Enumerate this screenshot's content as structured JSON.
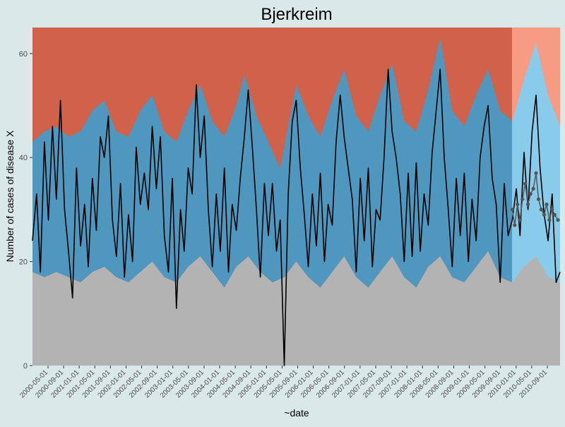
{
  "chart_data": {
    "type": "area",
    "title": "Bjerkreim",
    "xlabel": "~date",
    "ylabel": "Number of cases of disease X",
    "ylim": [
      0,
      65
    ],
    "xlim": [
      "2000-01-01",
      "2010-12-31"
    ],
    "y_ticks": [
      0,
      20,
      40,
      60
    ],
    "x_ticks": [
      "2000-05-01",
      "2000-09-01",
      "2001-01-01",
      "2001-05-01",
      "2001-09-01",
      "2002-01-01",
      "2002-05-01",
      "2002-09-01",
      "2003-01-01",
      "2003-05-01",
      "2003-09-01",
      "2004-01-01",
      "2004-05-01",
      "2004-09-01",
      "2005-01-01",
      "2005-05-01",
      "2005-09-01",
      "2006-01-01",
      "2006-05-01",
      "2006-09-01",
      "2007-01-01",
      "2007-05-01",
      "2007-09-01",
      "2007-01-01",
      "2008-01-01",
      "2008-05-01",
      "2008-09-01",
      "2009-01-01",
      "2009-05-01",
      "2009-09-01",
      "2010-01-01",
      "2010-05-01",
      "2010-09-01"
    ],
    "historical_end": "2009-12-31",
    "band_upper": [
      [
        "2000-01-01",
        43
      ],
      [
        "2000-04-01",
        45
      ],
      [
        "2000-07-01",
        46
      ],
      [
        "2000-10-01",
        44
      ],
      [
        "2001-01-01",
        45
      ],
      [
        "2001-04-01",
        49
      ],
      [
        "2001-07-01",
        51
      ],
      [
        "2001-10-01",
        45
      ],
      [
        "2002-01-01",
        44
      ],
      [
        "2002-04-01",
        49
      ],
      [
        "2002-07-01",
        52
      ],
      [
        "2002-10-01",
        45
      ],
      [
        "2003-01-01",
        43
      ],
      [
        "2003-04-01",
        49
      ],
      [
        "2003-07-01",
        54
      ],
      [
        "2003-10-01",
        47
      ],
      [
        "2004-01-01",
        44
      ],
      [
        "2004-04-01",
        50
      ],
      [
        "2004-06-01",
        56
      ],
      [
        "2004-09-01",
        48
      ],
      [
        "2004-12-01",
        43
      ],
      [
        "2005-03-01",
        38
      ],
      [
        "2005-07-01",
        54
      ],
      [
        "2005-10-01",
        48
      ],
      [
        "2006-01-01",
        44
      ],
      [
        "2006-04-01",
        51
      ],
      [
        "2006-07-01",
        57
      ],
      [
        "2006-10-01",
        48
      ],
      [
        "2007-01-01",
        45
      ],
      [
        "2007-04-01",
        52
      ],
      [
        "2007-07-01",
        58
      ],
      [
        "2007-10-01",
        47
      ],
      [
        "2008-01-01",
        45
      ],
      [
        "2008-04-01",
        53
      ],
      [
        "2008-07-01",
        63
      ],
      [
        "2008-10-01",
        49
      ],
      [
        "2009-01-01",
        46
      ],
      [
        "2009-04-01",
        52
      ],
      [
        "2009-07-01",
        57
      ],
      [
        "2009-10-01",
        49
      ],
      [
        "2010-01-01",
        47
      ],
      [
        "2010-04-01",
        55
      ],
      [
        "2010-07-01",
        62
      ],
      [
        "2010-10-01",
        52
      ],
      [
        "2010-12-31",
        46
      ]
    ],
    "band_lower": [
      [
        "2000-01-01",
        18
      ],
      [
        "2000-04-01",
        17
      ],
      [
        "2000-07-01",
        18
      ],
      [
        "2000-10-01",
        17
      ],
      [
        "2001-01-01",
        16
      ],
      [
        "2001-04-01",
        18
      ],
      [
        "2001-07-01",
        19
      ],
      [
        "2001-10-01",
        17
      ],
      [
        "2002-01-01",
        16
      ],
      [
        "2002-04-01",
        18
      ],
      [
        "2002-07-01",
        20
      ],
      [
        "2002-10-01",
        17
      ],
      [
        "2003-01-01",
        16
      ],
      [
        "2003-04-01",
        19
      ],
      [
        "2003-07-01",
        21
      ],
      [
        "2003-10-01",
        18
      ],
      [
        "2004-01-01",
        15
      ],
      [
        "2004-04-01",
        19
      ],
      [
        "2004-07-01",
        21
      ],
      [
        "2004-10-01",
        18
      ],
      [
        "2005-01-01",
        16
      ],
      [
        "2005-04-01",
        17
      ],
      [
        "2005-07-01",
        20
      ],
      [
        "2005-10-01",
        17
      ],
      [
        "2006-01-01",
        15
      ],
      [
        "2006-04-01",
        18
      ],
      [
        "2006-07-01",
        21
      ],
      [
        "2006-10-01",
        17
      ],
      [
        "2007-01-01",
        15
      ],
      [
        "2007-04-01",
        18
      ],
      [
        "2007-07-01",
        21
      ],
      [
        "2007-10-01",
        17
      ],
      [
        "2008-01-01",
        15
      ],
      [
        "2008-04-01",
        19
      ],
      [
        "2008-07-01",
        21
      ],
      [
        "2008-10-01",
        17
      ],
      [
        "2009-01-01",
        16
      ],
      [
        "2009-04-01",
        19
      ],
      [
        "2009-07-01",
        22
      ],
      [
        "2009-10-01",
        17
      ],
      [
        "2010-01-01",
        16
      ],
      [
        "2010-04-01",
        19
      ],
      [
        "2010-07-01",
        21
      ],
      [
        "2010-10-01",
        17
      ],
      [
        "2010-12-31",
        16
      ]
    ],
    "series": [
      {
        "values": [
          [
            "2000-01-01",
            24
          ],
          [
            "2000-02-01",
            33
          ],
          [
            "2000-03-01",
            18
          ],
          [
            "2000-04-01",
            43
          ],
          [
            "2000-05-01",
            28
          ],
          [
            "2000-06-01",
            46
          ],
          [
            "2000-07-01",
            32
          ],
          [
            "2000-08-01",
            51
          ],
          [
            "2000-09-01",
            30
          ],
          [
            "2000-10-01",
            22
          ],
          [
            "2000-11-01",
            13
          ],
          [
            "2000-12-01",
            38
          ],
          [
            "2001-01-01",
            23
          ],
          [
            "2001-02-01",
            31
          ],
          [
            "2001-03-01",
            19
          ],
          [
            "2001-04-01",
            36
          ],
          [
            "2001-05-01",
            26
          ],
          [
            "2001-06-01",
            44
          ],
          [
            "2001-07-01",
            40
          ],
          [
            "2001-08-01",
            48
          ],
          [
            "2001-09-01",
            28
          ],
          [
            "2001-10-01",
            21
          ],
          [
            "2001-11-01",
            35
          ],
          [
            "2001-12-01",
            17
          ],
          [
            "2002-01-01",
            29
          ],
          [
            "2002-02-01",
            20
          ],
          [
            "2002-03-01",
            42
          ],
          [
            "2002-04-01",
            31
          ],
          [
            "2002-05-01",
            37
          ],
          [
            "2002-06-01",
            30
          ],
          [
            "2002-07-01",
            46
          ],
          [
            "2002-08-01",
            34
          ],
          [
            "2002-09-01",
            44
          ],
          [
            "2002-10-01",
            25
          ],
          [
            "2002-11-01",
            18
          ],
          [
            "2002-12-01",
            36
          ],
          [
            "2003-01-01",
            11
          ],
          [
            "2003-02-01",
            30
          ],
          [
            "2003-03-01",
            22
          ],
          [
            "2003-04-01",
            38
          ],
          [
            "2003-05-01",
            33
          ],
          [
            "2003-06-01",
            54
          ],
          [
            "2003-07-01",
            40
          ],
          [
            "2003-08-01",
            48
          ],
          [
            "2003-09-01",
            30
          ],
          [
            "2003-10-01",
            19
          ],
          [
            "2003-11-01",
            33
          ],
          [
            "2003-12-01",
            22
          ],
          [
            "2004-01-01",
            38
          ],
          [
            "2004-02-01",
            18
          ],
          [
            "2004-03-01",
            31
          ],
          [
            "2004-04-01",
            26
          ],
          [
            "2004-05-01",
            36
          ],
          [
            "2004-06-01",
            44
          ],
          [
            "2004-07-01",
            53
          ],
          [
            "2004-08-01",
            42
          ],
          [
            "2004-09-01",
            30
          ],
          [
            "2004-10-01",
            17
          ],
          [
            "2004-11-01",
            35
          ],
          [
            "2004-12-01",
            25
          ],
          [
            "2005-01-01",
            35
          ],
          [
            "2005-02-01",
            22
          ],
          [
            "2005-03-01",
            28
          ],
          [
            "2005-04-01",
            0
          ],
          [
            "2005-05-01",
            33
          ],
          [
            "2005-06-01",
            47
          ],
          [
            "2005-07-01",
            51
          ],
          [
            "2005-08-01",
            38
          ],
          [
            "2005-09-01",
            29
          ],
          [
            "2005-10-01",
            19
          ],
          [
            "2005-11-01",
            33
          ],
          [
            "2005-12-01",
            23
          ],
          [
            "2006-01-01",
            37
          ],
          [
            "2006-02-01",
            20
          ],
          [
            "2006-03-01",
            31
          ],
          [
            "2006-04-01",
            27
          ],
          [
            "2006-05-01",
            43
          ],
          [
            "2006-06-01",
            52
          ],
          [
            "2006-07-01",
            44
          ],
          [
            "2006-08-01",
            38
          ],
          [
            "2006-09-01",
            32
          ],
          [
            "2006-10-01",
            18
          ],
          [
            "2006-11-01",
            36
          ],
          [
            "2006-12-01",
            24
          ],
          [
            "2007-01-01",
            38
          ],
          [
            "2007-02-01",
            19
          ],
          [
            "2007-03-01",
            30
          ],
          [
            "2007-04-01",
            28
          ],
          [
            "2007-05-01",
            40
          ],
          [
            "2007-06-01",
            57
          ],
          [
            "2007-07-01",
            45
          ],
          [
            "2007-08-01",
            40
          ],
          [
            "2007-09-01",
            33
          ],
          [
            "2007-10-01",
            20
          ],
          [
            "2007-11-01",
            37
          ],
          [
            "2007-12-01",
            21
          ],
          [
            "2008-01-01",
            39
          ],
          [
            "2008-02-01",
            22
          ],
          [
            "2008-03-01",
            33
          ],
          [
            "2008-04-01",
            27
          ],
          [
            "2008-05-01",
            41
          ],
          [
            "2008-06-01",
            49
          ],
          [
            "2008-07-01",
            57
          ],
          [
            "2008-08-01",
            40
          ],
          [
            "2008-09-01",
            30
          ],
          [
            "2008-10-01",
            19
          ],
          [
            "2008-11-01",
            36
          ],
          [
            "2008-12-01",
            25
          ],
          [
            "2009-01-01",
            37
          ],
          [
            "2009-02-01",
            20
          ],
          [
            "2009-03-01",
            32
          ],
          [
            "2009-04-01",
            24
          ],
          [
            "2009-05-01",
            40
          ],
          [
            "2009-06-01",
            46
          ],
          [
            "2009-07-01",
            50
          ],
          [
            "2009-08-01",
            36
          ],
          [
            "2009-09-01",
            31
          ],
          [
            "2009-10-01",
            16
          ],
          [
            "2009-11-01",
            35
          ],
          [
            "2009-12-01",
            25
          ],
          [
            "2010-01-01",
            28
          ],
          [
            "2010-02-01",
            34
          ],
          [
            "2010-03-01",
            25
          ],
          [
            "2010-04-01",
            41
          ],
          [
            "2010-05-01",
            30
          ],
          [
            "2010-06-01",
            45
          ],
          [
            "2010-07-01",
            52
          ],
          [
            "2010-08-01",
            38
          ],
          [
            "2010-09-01",
            29
          ],
          [
            "2010-10-01",
            24
          ],
          [
            "2010-11-01",
            33
          ],
          [
            "2010-12-01",
            16
          ],
          [
            "2010-12-31",
            18
          ]
        ]
      },
      {
        "values": [
          [
            "2010-01-01",
            30
          ],
          [
            "2010-01-20",
            27
          ],
          [
            "2010-02-10",
            31
          ],
          [
            "2010-03-01",
            28
          ],
          [
            "2010-03-20",
            32
          ],
          [
            "2010-04-10",
            35
          ],
          [
            "2010-05-01",
            31
          ],
          [
            "2010-05-20",
            33
          ],
          [
            "2010-06-10",
            34
          ],
          [
            "2010-07-01",
            37
          ],
          [
            "2010-07-20",
            32
          ],
          [
            "2010-08-10",
            30
          ],
          [
            "2010-09-01",
            29
          ],
          [
            "2010-09-20",
            31
          ],
          [
            "2010-10-10",
            28
          ],
          [
            "2010-11-01",
            30
          ],
          [
            "2010-11-20",
            29
          ],
          [
            "2010-12-15",
            28
          ]
        ]
      }
    ],
    "colors": {
      "panel_background": "#d0614a",
      "panel_background_forecast": "#f79b82",
      "band": "#4f97bf",
      "band_forecast": "#89cbea",
      "below_band": "#b3b3b3",
      "observed_line": "#000000",
      "forecast_points": "#555555",
      "page_background": "#dae8e8"
    },
    "grid": false,
    "legend": "none"
  }
}
